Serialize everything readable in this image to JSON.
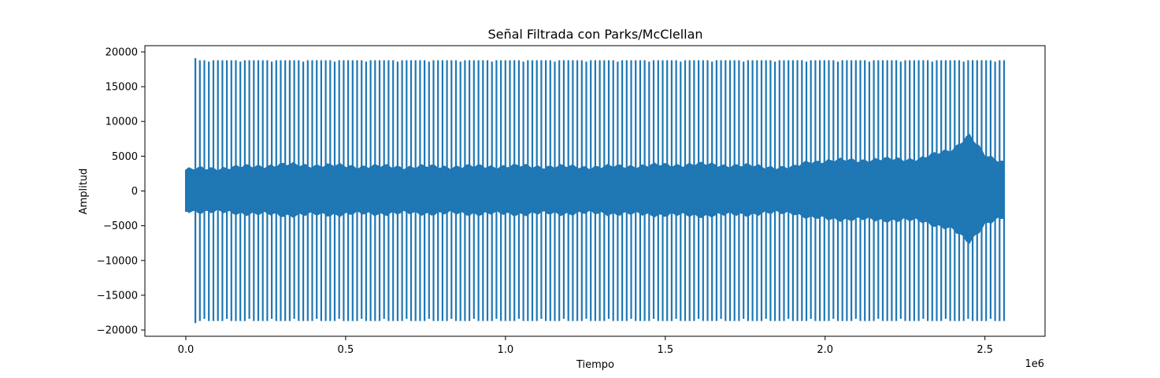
{
  "chart_data": {
    "type": "line",
    "title": "Señal Filtrada con Parks/McClellan",
    "xlabel": "Tiempo",
    "ylabel": "Amplitud",
    "x_offset_label": "1e6",
    "xlim": [
      -0.128,
      2.688
    ],
    "ylim": [
      -20900,
      20900
    ],
    "x_ticks": [
      0.0,
      0.5,
      1.0,
      1.5,
      2.0,
      2.5
    ],
    "x_tick_labels": [
      "0.0",
      "0.5",
      "1.0",
      "1.5",
      "2.0",
      "2.5"
    ],
    "y_ticks": [
      20000,
      15000,
      10000,
      5000,
      0,
      -5000,
      -10000,
      -15000,
      -20000
    ],
    "y_tick_labels": [
      "20000",
      "15000",
      "10000",
      "5000",
      "0",
      "−5000",
      "−10000",
      "−15000",
      "−20000"
    ],
    "grid": false,
    "series": [
      {
        "color": "#1f77b4",
        "x_start": 0.0,
        "x_end": 2.56,
        "spike_start": 0.03,
        "spike_count": 180,
        "spike_max": 18800,
        "spike_min": -18700,
        "first_spike_max": 19100,
        "first_spike_min": -19000,
        "envelope": [
          [
            0.0,
            3000
          ],
          [
            0.3,
            3700
          ],
          [
            0.7,
            3400
          ],
          [
            1.0,
            3500
          ],
          [
            1.3,
            3400
          ],
          [
            1.6,
            3800
          ],
          [
            1.9,
            3300
          ],
          [
            1.95,
            4200
          ],
          [
            2.3,
            4600
          ],
          [
            2.4,
            6000
          ],
          [
            2.45,
            8000
          ],
          [
            2.5,
            5000
          ],
          [
            2.56,
            4200
          ]
        ]
      }
    ]
  }
}
